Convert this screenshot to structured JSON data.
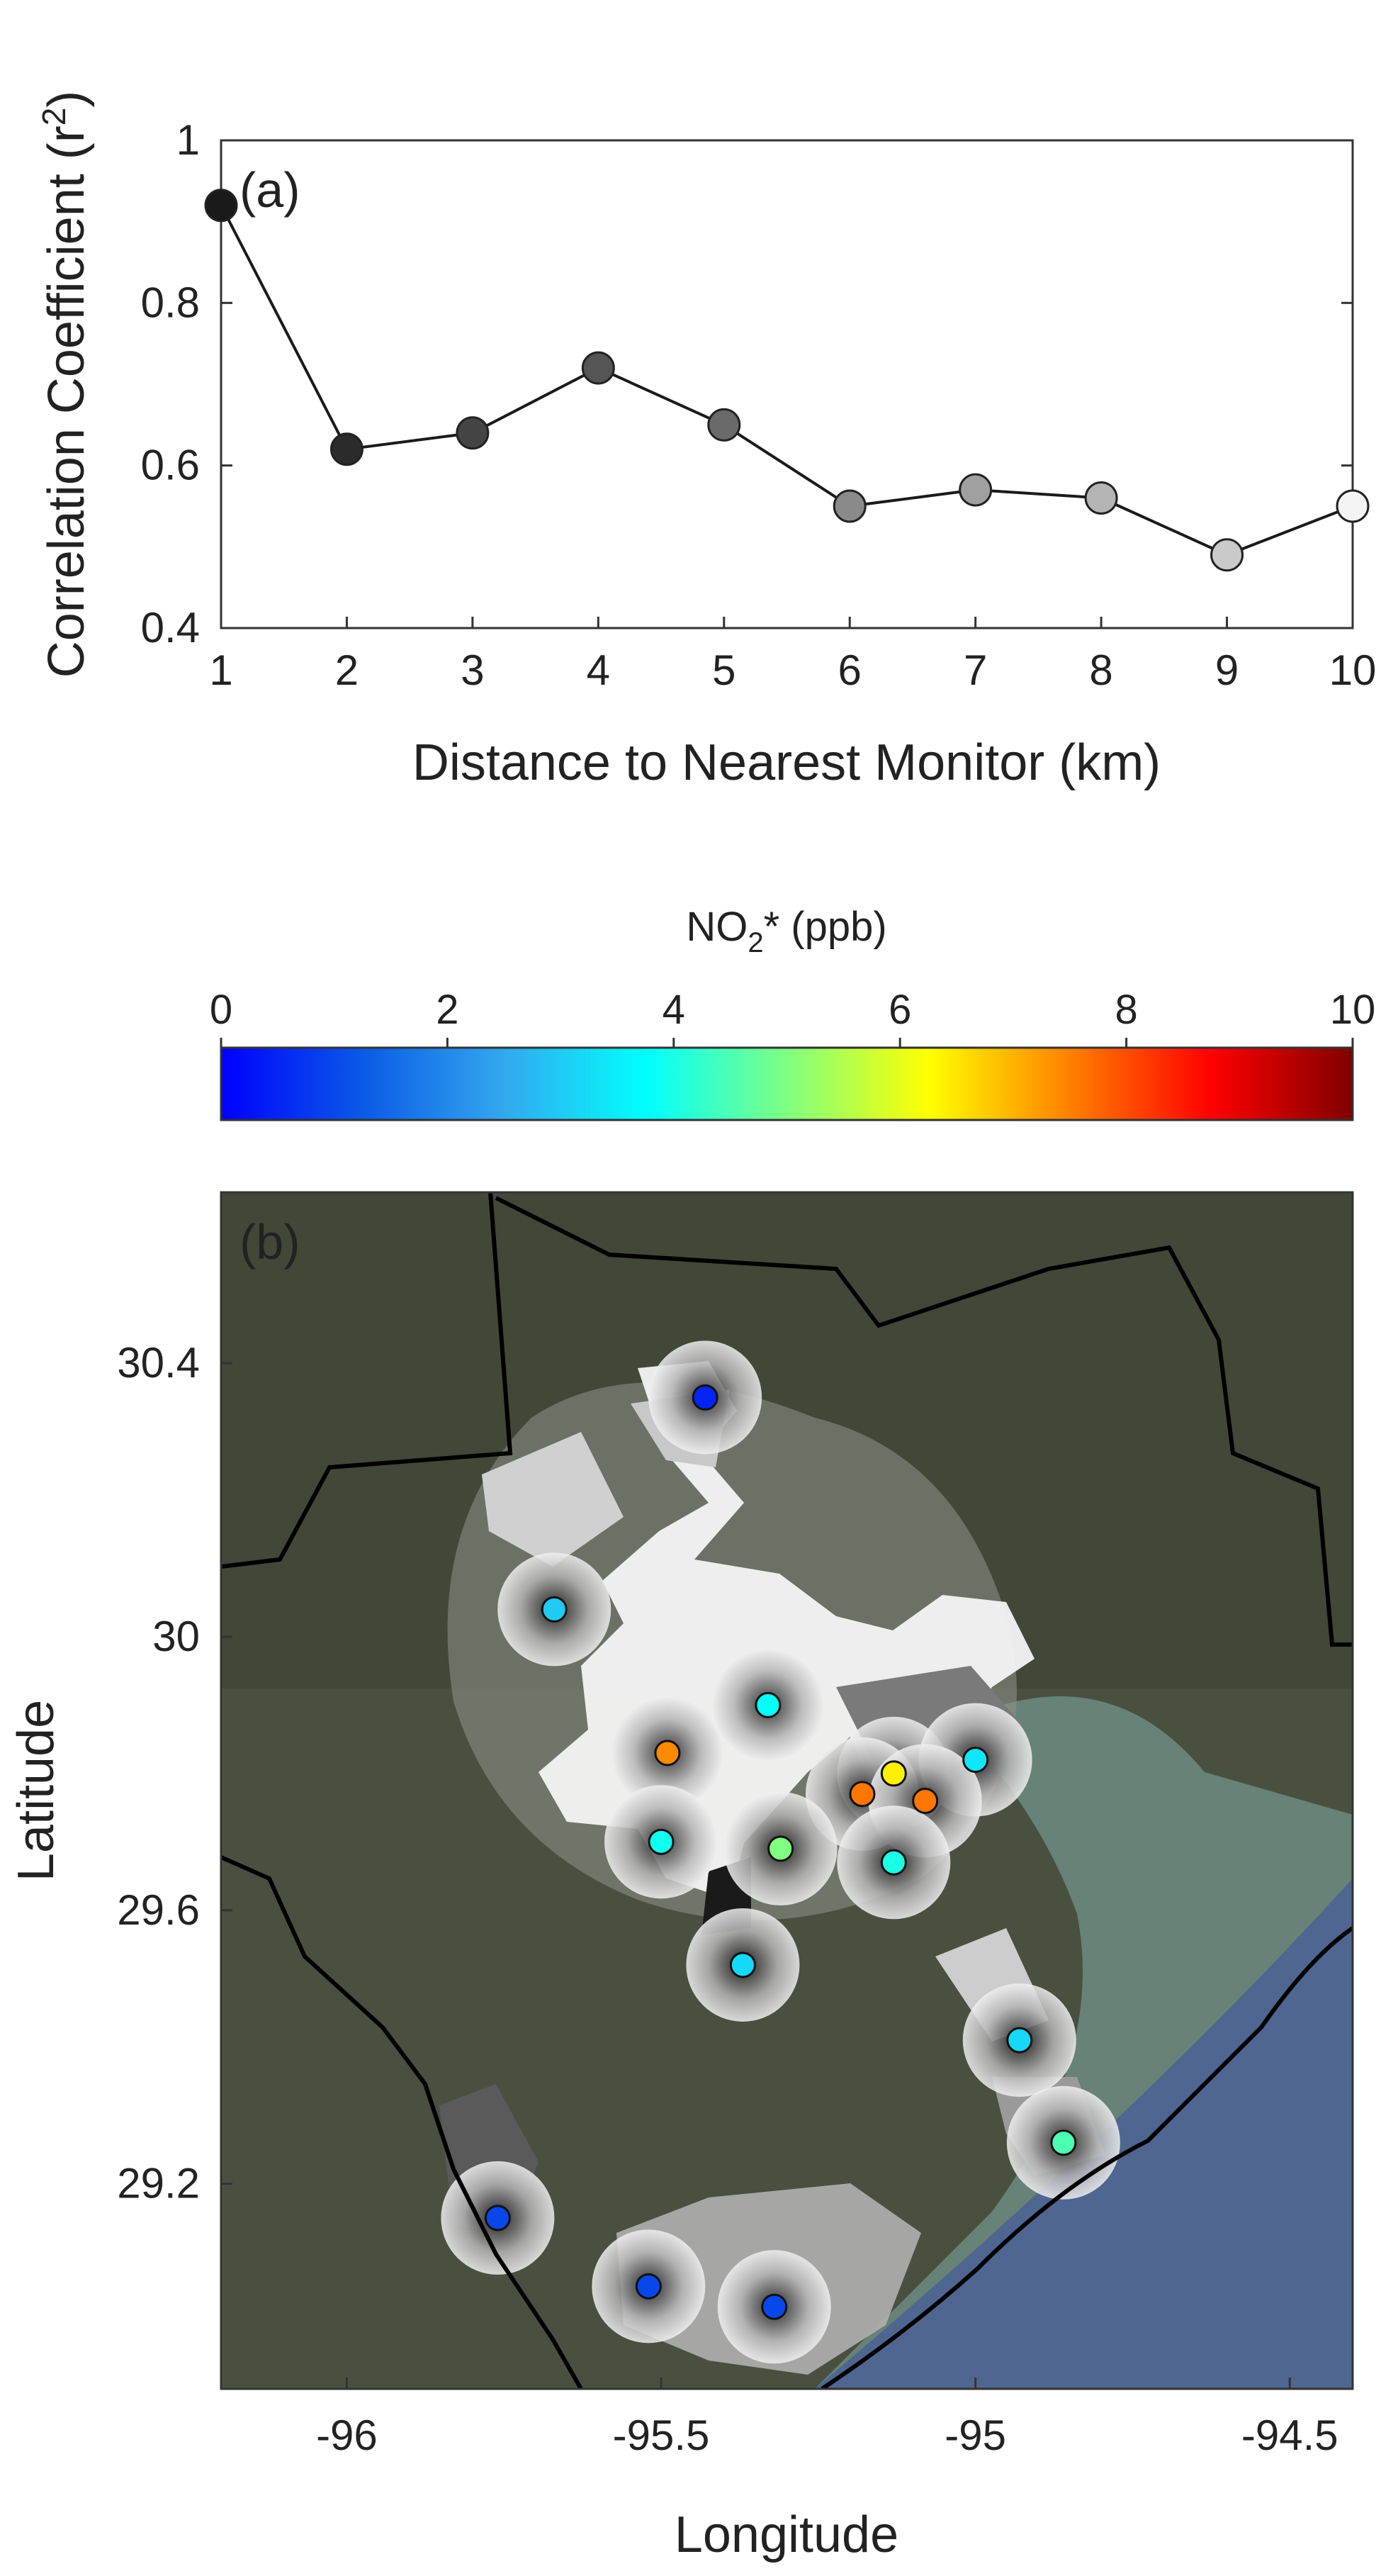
{
  "chart_data": [
    {
      "type": "line",
      "panel_label": "(a)",
      "xlabel": "Distance to Nearest Monitor (km)",
      "ylabel_main": "Correlation Coefficient (r",
      "ylabel_sup": "2",
      "ylabel_close": ")",
      "xlim": [
        1,
        10
      ],
      "ylim": [
        0.4,
        1.0
      ],
      "x_ticks": [
        1,
        2,
        3,
        4,
        5,
        6,
        7,
        8,
        9,
        10
      ],
      "x_tick_labels": [
        "1",
        "2",
        "3",
        "4",
        "5",
        "6",
        "7",
        "8",
        "9",
        "10"
      ],
      "y_ticks": [
        0.4,
        0.6,
        0.8,
        1.0
      ],
      "y_tick_labels": [
        "0.4",
        "0.6",
        "0.8",
        "1"
      ],
      "grid": false,
      "series": [
        {
          "x": [
            1,
            2,
            3,
            4,
            5,
            6,
            7,
            8,
            9,
            10
          ],
          "y": [
            0.92,
            0.62,
            0.64,
            0.72,
            0.65,
            0.55,
            0.57,
            0.56,
            0.49,
            0.55
          ],
          "marker_colors": [
            "#1a1a1a",
            "#2b2b2b",
            "#444444",
            "#555555",
            "#6a6a6a",
            "#8a8a8a",
            "#a0a0a0",
            "#b4b4b4",
            "#cacaca",
            "#f4f4f4"
          ]
        }
      ]
    },
    {
      "type": "scatter",
      "panel_label": "(b)",
      "xlabel": "Longitude",
      "ylabel": "Latitude",
      "xlim": [
        -96.2,
        -94.4
      ],
      "ylim": [
        28.9,
        30.65
      ],
      "x_ticks": [
        -96,
        -95.5,
        -95,
        -94.5
      ],
      "x_tick_labels": [
        "-96",
        "-95.5",
        "-95",
        "-94.5"
      ],
      "y_ticks": [
        29.2,
        29.6,
        30.0,
        30.4
      ],
      "y_tick_labels": [
        "29.2",
        "29.6",
        "30",
        "30.4"
      ],
      "colorbar": {
        "title_main": "NO",
        "title_sub": "2",
        "title_rest": "* (ppb)",
        "min": 0,
        "max": 10,
        "tick_values": [
          0,
          2,
          4,
          6,
          8,
          10
        ],
        "tick_labels": [
          "0",
          "2",
          "4",
          "6",
          "8",
          "10"
        ],
        "colors": [
          "#0000ff",
          "#0a5ae6",
          "#33a8ee",
          "#00ffff",
          "#80ff80",
          "#ffff00",
          "#ff8000",
          "#ff0000",
          "#800000"
        ]
      },
      "points": [
        {
          "lon": -95.43,
          "lat": 30.35,
          "value": 0.5
        },
        {
          "lon": -95.67,
          "lat": 30.04,
          "value": 3.0
        },
        {
          "lon": -95.33,
          "lat": 29.9,
          "value": 3.8
        },
        {
          "lon": -95.49,
          "lat": 29.83,
          "value": 7.4
        },
        {
          "lon": -95.13,
          "lat": 29.8,
          "value": 6.4
        },
        {
          "lon": -95.0,
          "lat": 29.82,
          "value": 3.4
        },
        {
          "lon": -95.18,
          "lat": 29.77,
          "value": 7.6
        },
        {
          "lon": -95.08,
          "lat": 29.76,
          "value": 7.6
        },
        {
          "lon": -95.5,
          "lat": 29.7,
          "value": 3.9
        },
        {
          "lon": -95.31,
          "lat": 29.69,
          "value": 5.0
        },
        {
          "lon": -95.13,
          "lat": 29.67,
          "value": 4.0
        },
        {
          "lon": -95.37,
          "lat": 29.52,
          "value": 3.2
        },
        {
          "lon": -94.93,
          "lat": 29.41,
          "value": 3.2
        },
        {
          "lon": -94.86,
          "lat": 29.26,
          "value": 4.5
        },
        {
          "lon": -95.76,
          "lat": 29.15,
          "value": 1.0
        },
        {
          "lon": -95.52,
          "lat": 29.05,
          "value": 1.0
        },
        {
          "lon": -95.32,
          "lat": 29.02,
          "value": 1.0
        }
      ]
    }
  ]
}
